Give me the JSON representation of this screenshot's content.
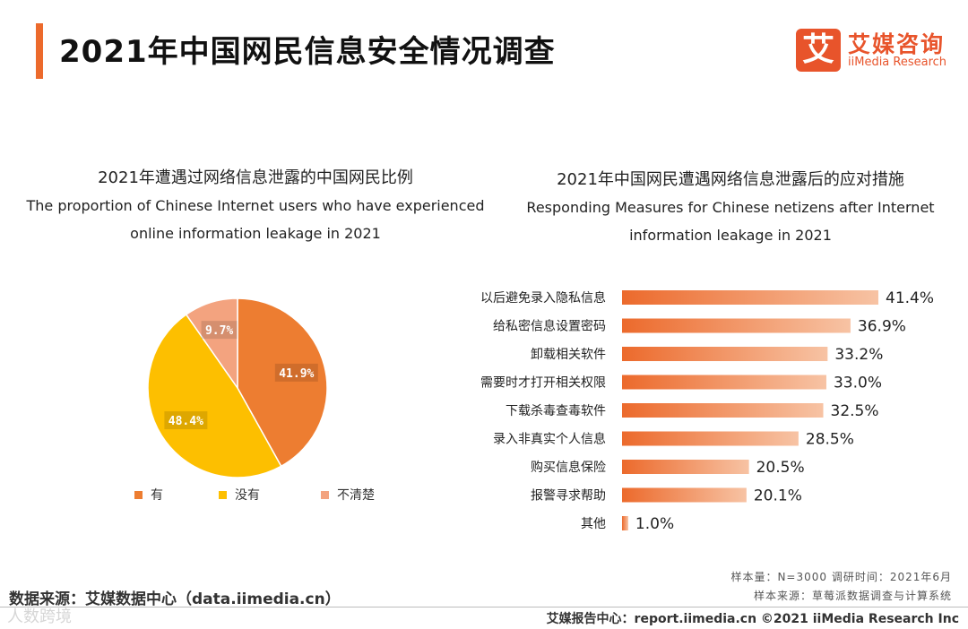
{
  "header": {
    "title": "2021年中国网民信息安全情况调查",
    "logo_mark": "艾",
    "logo_cn": "艾媒咨询",
    "logo_en": "iiMedia Research",
    "accent_color": "#ec6a2c"
  },
  "chart_data": [
    {
      "type": "pie",
      "title": "2021年遭遇过网络信息泄露的中国网民比例",
      "subtitle": "The proportion of Chinese Internet users who have experienced online information leakage in 2021",
      "slices": [
        {
          "name": "有",
          "value": 41.9,
          "label": "41.9%",
          "color": "#ed7d31"
        },
        {
          "name": "没有",
          "value": 48.4,
          "label": "48.4%",
          "color": "#fdbf00"
        },
        {
          "name": "不清楚",
          "value": 9.7,
          "label": "9.7%",
          "color": "#f3a37f"
        }
      ],
      "legend_position": "bottom"
    },
    {
      "type": "bar",
      "orientation": "horizontal",
      "title": "2021年中国网民遭遇网络信息泄露后的应对措施",
      "subtitle": "Responding Measures for Chinese netizens after Internet information leakage in 2021",
      "categories": [
        "以后避免录入隐私信息",
        "给私密信息设置密码",
        "卸载相关软件",
        "需要时才打开相关权限",
        "下载杀毒查毒软件",
        "录入非真实个人信息",
        "购买信息保险",
        "报警寻求帮助",
        "其他"
      ],
      "values": [
        41.4,
        36.9,
        33.2,
        33.0,
        32.5,
        28.5,
        20.5,
        20.1,
        1.0
      ],
      "value_labels": [
        "41.4%",
        "36.9%",
        "33.2%",
        "33.0%",
        "32.5%",
        "28.5%",
        "20.5%",
        "20.1%",
        "1.0%"
      ],
      "bar_color_start": "#ec6a2c",
      "bar_color_end": "#f7c3a4",
      "grid": false
    }
  ],
  "footnotes": {
    "sample": "样本量：N=3000    调研时间：2021年6月",
    "sample_source": "样本来源：草莓派数据调查与计算系统"
  },
  "source": "数据来源：艾媒数据中心（data.iimedia.cn）",
  "watermark": "人数跨境",
  "footer": "艾媒报告中心：report.iimedia.cn   ©2021  iiMedia Research  Inc"
}
